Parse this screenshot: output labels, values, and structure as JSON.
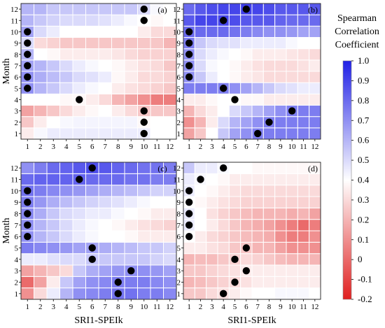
{
  "chart_data": [
    {
      "type": "heatmap",
      "panel": "(a)",
      "x_categories": [
        "1",
        "2",
        "3",
        "4",
        "5",
        "6",
        "7",
        "8",
        "9",
        "10",
        "11",
        "12"
      ],
      "y_categories": [
        "1",
        "2",
        "3",
        "4",
        "5",
        "6",
        "7",
        "8",
        "9",
        "10",
        "11",
        "12"
      ],
      "xlabel": "",
      "ylabel": "Month",
      "values": [
        [
          0.35,
          0.42,
          0.45,
          0.45,
          0.45,
          0.45,
          0.45,
          0.45,
          0.45,
          0.45,
          0.4,
          0.4
        ],
        [
          0.25,
          0.35,
          0.4,
          0.42,
          0.43,
          0.43,
          0.43,
          0.43,
          0.43,
          0.38,
          0.4,
          0.4
        ],
        [
          0.15,
          0.2,
          0.25,
          0.3,
          0.35,
          0.38,
          0.4,
          0.35,
          0.3,
          0.25,
          0.25,
          0.25
        ],
        [
          0.4,
          0.4,
          0.4,
          0.38,
          0.38,
          0.35,
          0.3,
          0.2,
          0.15,
          0.1,
          0.05,
          0.05
        ],
        [
          0.7,
          0.6,
          0.55,
          0.5,
          0.45,
          0.42,
          0.4,
          0.35,
          0.32,
          0.3,
          0.28,
          0.25
        ],
        [
          0.7,
          0.62,
          0.58,
          0.55,
          0.5,
          0.48,
          0.45,
          0.38,
          0.35,
          0.3,
          0.3,
          0.28
        ],
        [
          0.65,
          0.6,
          0.55,
          0.5,
          0.45,
          0.42,
          0.4,
          0.38,
          0.35,
          0.32,
          0.3,
          0.25
        ],
        [
          0.6,
          0.4,
          0.38,
          0.35,
          0.35,
          0.35,
          0.35,
          0.33,
          0.3,
          0.28,
          0.28,
          0.28
        ],
        [
          0.5,
          0.3,
          0.28,
          0.25,
          0.25,
          0.25,
          0.25,
          0.25,
          0.25,
          0.25,
          0.25,
          0.2
        ],
        [
          0.65,
          0.5,
          0.45,
          0.4,
          0.4,
          0.4,
          0.4,
          0.4,
          0.4,
          0.35,
          0.3,
          0.3
        ],
        [
          0.6,
          0.55,
          0.52,
          0.5,
          0.5,
          0.5,
          0.48,
          0.45,
          0.42,
          0.4,
          0.38,
          0.4
        ],
        [
          0.6,
          0.6,
          0.55,
          0.55,
          0.55,
          0.55,
          0.55,
          0.55,
          0.55,
          0.5,
          0.42,
          0.4
        ]
      ],
      "max_markers": [
        [
          10,
          1
        ],
        [
          10,
          2
        ],
        [
          10,
          3
        ],
        [
          5,
          4
        ],
        [
          1,
          5
        ],
        [
          1,
          6
        ],
        [
          1,
          7
        ],
        [
          1,
          8
        ],
        [
          1,
          9
        ],
        [
          1,
          10
        ],
        [
          10,
          11
        ],
        [
          10,
          12
        ]
      ]
    },
    {
      "type": "heatmap",
      "panel": "(b)",
      "x_categories": [
        "1",
        "2",
        "3",
        "4",
        "5",
        "6",
        "7",
        "8",
        "9",
        "10",
        "11",
        "12"
      ],
      "y_categories": [
        "1",
        "2",
        "3",
        "4",
        "5",
        "6",
        "7",
        "8",
        "9",
        "10",
        "11",
        "12"
      ],
      "xlabel": "",
      "ylabel": "",
      "values": [
        [
          0.15,
          0.25,
          0.4,
          0.55,
          0.65,
          0.7,
          0.75,
          0.75,
          0.75,
          0.75,
          0.75,
          0.75
        ],
        [
          0.1,
          0.2,
          0.35,
          0.5,
          0.6,
          0.65,
          0.7,
          0.75,
          0.75,
          0.75,
          0.75,
          0.75
        ],
        [
          0.2,
          0.3,
          0.35,
          0.4,
          0.5,
          0.55,
          0.6,
          0.65,
          0.7,
          0.75,
          0.75,
          0.75
        ],
        [
          0.35,
          0.35,
          0.38,
          0.4,
          0.4,
          0.38,
          0.38,
          0.35,
          0.35,
          0.35,
          0.35,
          0.35
        ],
        [
          0.75,
          0.75,
          0.75,
          0.75,
          0.7,
          0.65,
          0.6,
          0.55,
          0.5,
          0.48,
          0.45,
          0.45
        ],
        [
          0.7,
          0.55,
          0.45,
          0.4,
          0.38,
          0.35,
          0.33,
          0.3,
          0.3,
          0.3,
          0.3,
          0.3
        ],
        [
          0.7,
          0.5,
          0.42,
          0.4,
          0.38,
          0.35,
          0.32,
          0.3,
          0.3,
          0.3,
          0.32,
          0.35
        ],
        [
          0.7,
          0.5,
          0.45,
          0.42,
          0.4,
          0.38,
          0.35,
          0.35,
          0.35,
          0.33,
          0.32,
          0.3
        ],
        [
          0.75,
          0.55,
          0.5,
          0.48,
          0.48,
          0.45,
          0.45,
          0.45,
          0.45,
          0.42,
          0.4,
          0.4
        ],
        [
          0.8,
          0.8,
          0.8,
          0.8,
          0.78,
          0.75,
          0.72,
          0.7,
          0.7,
          0.68,
          0.65,
          0.65
        ],
        [
          0.85,
          0.9,
          0.9,
          0.9,
          0.88,
          0.85,
          0.85,
          0.85,
          0.82,
          0.8,
          0.8,
          0.8
        ],
        [
          0.8,
          0.85,
          0.88,
          0.9,
          0.9,
          0.92,
          0.9,
          0.88,
          0.85,
          0.85,
          0.85,
          0.85
        ]
      ],
      "max_markers": [
        [
          7,
          1
        ],
        [
          8,
          2
        ],
        [
          10,
          3
        ],
        [
          5,
          4
        ],
        [
          4,
          5
        ],
        [
          1,
          6
        ],
        [
          1,
          7
        ],
        [
          1,
          8
        ],
        [
          1,
          9
        ],
        [
          1,
          10
        ],
        [
          4,
          11
        ],
        [
          6,
          12
        ]
      ]
    },
    {
      "type": "heatmap",
      "panel": "(c)",
      "x_categories": [
        "1",
        "2",
        "3",
        "4",
        "5",
        "6",
        "7",
        "8",
        "9",
        "10",
        "11",
        "12"
      ],
      "y_categories": [
        "1",
        "2",
        "3",
        "4",
        "5",
        "6",
        "7",
        "8",
        "9",
        "10",
        "11",
        "12"
      ],
      "xlabel": "SRI1-SPEIk",
      "ylabel": "Month",
      "values": [
        [
          0.1,
          0.3,
          0.45,
          0.6,
          0.7,
          0.72,
          0.75,
          0.78,
          0.78,
          0.75,
          0.75,
          0.72
        ],
        [
          0.0,
          0.15,
          0.35,
          0.55,
          0.65,
          0.7,
          0.72,
          0.75,
          0.75,
          0.75,
          0.72,
          0.7
        ],
        [
          0.15,
          0.2,
          0.25,
          0.3,
          0.55,
          0.62,
          0.65,
          0.68,
          0.7,
          0.7,
          0.68,
          0.65
        ],
        [
          0.45,
          0.45,
          0.48,
          0.5,
          0.5,
          0.55,
          0.55,
          0.55,
          0.55,
          0.55,
          0.52,
          0.5
        ],
        [
          0.75,
          0.72,
          0.7,
          0.68,
          0.65,
          0.65,
          0.62,
          0.6,
          0.58,
          0.55,
          0.55,
          0.52
        ],
        [
          0.7,
          0.6,
          0.55,
          0.5,
          0.45,
          0.42,
          0.4,
          0.4,
          0.38,
          0.35,
          0.35,
          0.35
        ],
        [
          0.7,
          0.6,
          0.55,
          0.5,
          0.45,
          0.42,
          0.4,
          0.38,
          0.35,
          0.32,
          0.3,
          0.28
        ],
        [
          0.72,
          0.62,
          0.55,
          0.5,
          0.48,
          0.45,
          0.45,
          0.42,
          0.4,
          0.38,
          0.35,
          0.35
        ],
        [
          0.75,
          0.68,
          0.62,
          0.58,
          0.55,
          0.52,
          0.5,
          0.48,
          0.45,
          0.42,
          0.4,
          0.4
        ],
        [
          0.78,
          0.75,
          0.72,
          0.7,
          0.68,
          0.65,
          0.62,
          0.6,
          0.58,
          0.55,
          0.52,
          0.52
        ],
        [
          0.8,
          0.82,
          0.82,
          0.82,
          0.82,
          0.8,
          0.8,
          0.8,
          0.78,
          0.78,
          0.75,
          0.75
        ],
        [
          0.7,
          0.75,
          0.8,
          0.82,
          0.85,
          0.88,
          0.85,
          0.82,
          0.8,
          0.78,
          0.78,
          0.75
        ]
      ],
      "max_markers": [
        [
          8,
          1
        ],
        [
          8,
          2
        ],
        [
          9,
          3
        ],
        [
          6,
          4
        ],
        [
          6,
          5
        ],
        [
          1,
          6
        ],
        [
          1,
          7
        ],
        [
          1,
          8
        ],
        [
          1,
          9
        ],
        [
          1,
          10
        ],
        [
          5,
          11
        ],
        [
          6,
          12
        ]
      ]
    },
    {
      "type": "heatmap",
      "panel": "(d)",
      "x_categories": [
        "1",
        "2",
        "3",
        "4",
        "5",
        "6",
        "7",
        "8",
        "9",
        "10",
        "11",
        "12"
      ],
      "y_categories": [
        "1",
        "2",
        "3",
        "4",
        "5",
        "6",
        "7",
        "8",
        "9",
        "10",
        "11",
        "12"
      ],
      "xlabel": "SRI1-SPEIk",
      "ylabel": "",
      "values": [
        [
          0.25,
          0.25,
          0.3,
          0.32,
          0.35,
          0.38,
          0.4,
          0.4,
          0.42,
          0.42,
          0.42,
          0.4
        ],
        [
          0.2,
          0.22,
          0.25,
          0.28,
          0.3,
          0.32,
          0.35,
          0.35,
          0.35,
          0.35,
          0.35,
          0.35
        ],
        [
          0.25,
          0.25,
          0.28,
          0.3,
          0.32,
          0.35,
          0.35,
          0.35,
          0.35,
          0.35,
          0.35,
          0.35
        ],
        [
          0.2,
          0.22,
          0.22,
          0.25,
          0.28,
          0.3,
          0.28,
          0.25,
          0.22,
          0.2,
          0.2,
          0.2
        ],
        [
          0.35,
          0.35,
          0.32,
          0.3,
          0.25,
          0.25,
          0.2,
          0.2,
          0.15,
          0.1,
          0.1,
          0.1
        ],
        [
          0.4,
          0.35,
          0.3,
          0.28,
          0.25,
          0.22,
          0.2,
          0.18,
          0.1,
          0.05,
          0.05,
          0.1
        ],
        [
          0.45,
          0.4,
          0.35,
          0.3,
          0.25,
          0.2,
          0.18,
          0.15,
          0.1,
          0.05,
          0.0,
          0.05
        ],
        [
          0.45,
          0.4,
          0.32,
          0.28,
          0.25,
          0.22,
          0.2,
          0.2,
          0.2,
          0.18,
          0.2,
          0.15
        ],
        [
          0.4,
          0.38,
          0.35,
          0.32,
          0.3,
          0.28,
          0.28,
          0.28,
          0.28,
          0.28,
          0.28,
          0.28
        ],
        [
          0.45,
          0.4,
          0.38,
          0.35,
          0.32,
          0.3,
          0.3,
          0.3,
          0.3,
          0.3,
          0.3,
          0.3
        ],
        [
          0.45,
          0.42,
          0.4,
          0.38,
          0.35,
          0.35,
          0.35,
          0.35,
          0.35,
          0.35,
          0.35,
          0.35
        ],
        [
          0.55,
          0.45,
          0.45,
          0.42,
          0.4,
          0.4,
          0.38,
          0.38,
          0.38,
          0.38,
          0.38,
          0.38
        ]
      ],
      "max_markers": [
        [
          4,
          1
        ],
        [
          5,
          2
        ],
        [
          6,
          3
        ],
        [
          5,
          4
        ],
        [
          6,
          5
        ],
        [
          1,
          6
        ],
        [
          1,
          7
        ],
        [
          1,
          8
        ],
        [
          1,
          9
        ],
        [
          1,
          10
        ],
        [
          2,
          11
        ],
        [
          4,
          12
        ]
      ]
    },
    {
      "type": "colorbar",
      "title_lines": [
        "Spearman",
        "Correlation",
        "Coefficient"
      ],
      "range": [
        -0.2,
        1.0
      ],
      "ticks": [
        "1.0",
        "0.9",
        "0.8",
        "0.7",
        "0.6",
        "0.5",
        "0.4",
        "0.3",
        "0.2",
        "0.1",
        "0",
        "-0.1",
        "-0.2"
      ],
      "colors": {
        "low": "#e02020",
        "mid": "#ffffff",
        "high": "#2020e6"
      },
      "mid_value": 0.4
    }
  ]
}
